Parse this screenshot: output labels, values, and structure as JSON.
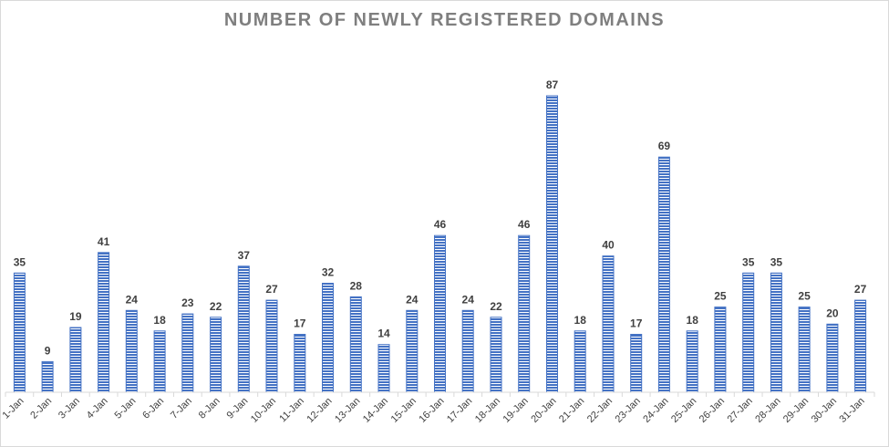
{
  "chart_data": {
    "type": "bar",
    "title": "NUMBER OF NEWLY REGISTERED DOMAINS",
    "xlabel": "",
    "ylabel": "",
    "categories": [
      "1-Jan",
      "2-Jan",
      "3-Jan",
      "4-Jan",
      "5-Jan",
      "6-Jan",
      "7-Jan",
      "8-Jan",
      "9-Jan",
      "10-Jan",
      "11-Jan",
      "12-Jan",
      "13-Jan",
      "14-Jan",
      "15-Jan",
      "16-Jan",
      "17-Jan",
      "18-Jan",
      "19-Jan",
      "20-Jan",
      "21-Jan",
      "22-Jan",
      "23-Jan",
      "24-Jan",
      "25-Jan",
      "26-Jan",
      "27-Jan",
      "28-Jan",
      "29-Jan",
      "30-Jan",
      "31-Jan"
    ],
    "values": [
      35,
      9,
      19,
      41,
      24,
      18,
      23,
      22,
      37,
      27,
      17,
      32,
      28,
      14,
      24,
      46,
      24,
      22,
      46,
      87,
      18,
      40,
      17,
      69,
      18,
      25,
      35,
      35,
      25,
      20,
      27
    ],
    "ylim": [
      0,
      87
    ],
    "grid": false,
    "legend": "none",
    "data_labels": true,
    "bar_color": "#4472c4",
    "bar_pattern": "horizontal-stripes"
  }
}
